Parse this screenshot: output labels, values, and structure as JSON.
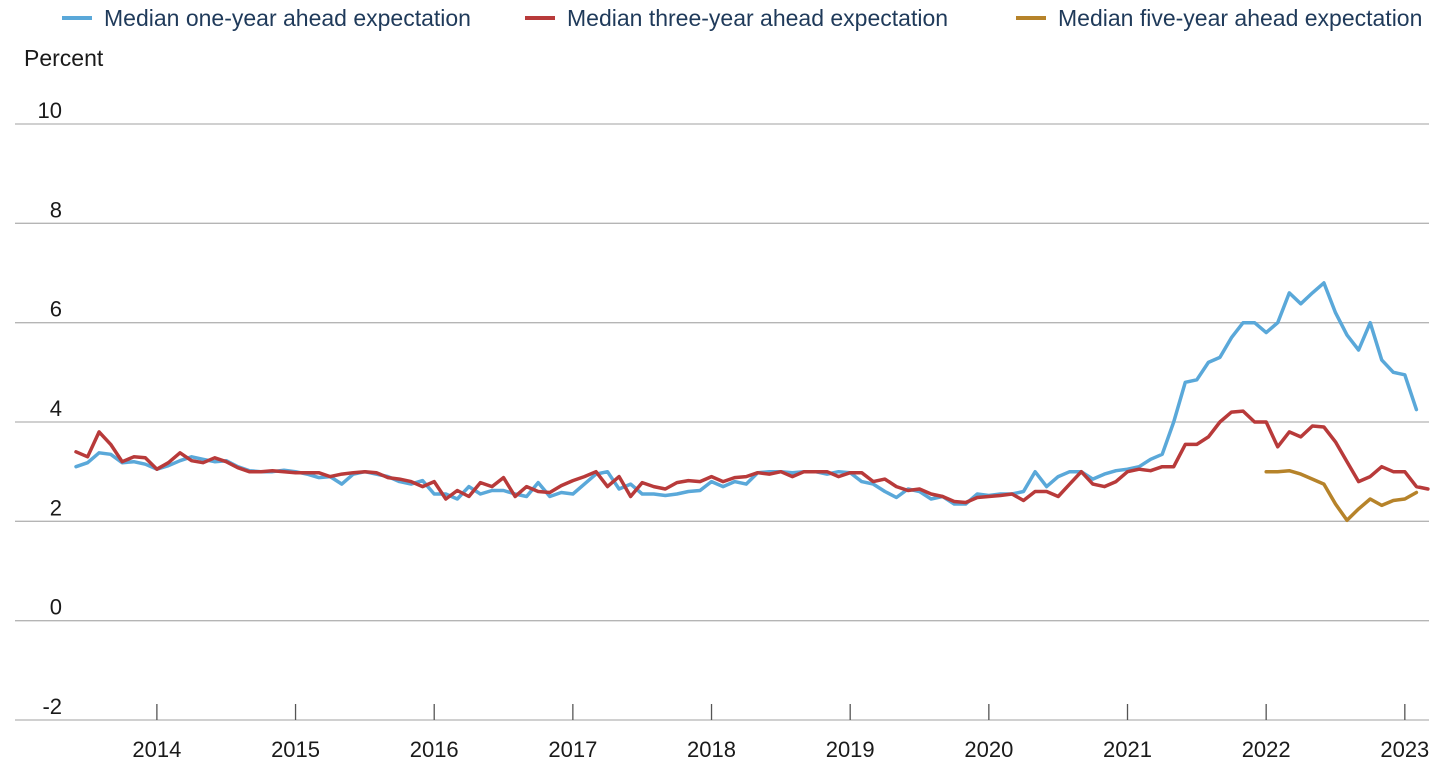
{
  "chart_data": {
    "type": "line",
    "title": "",
    "xlabel": "",
    "ylabel": "Percent",
    "ylim": [
      -2,
      10
    ],
    "yticks": [
      -2,
      0,
      2,
      4,
      6,
      8,
      10
    ],
    "xticks": [
      "2014",
      "2015",
      "2016",
      "2017",
      "2018",
      "2019",
      "2020",
      "2021",
      "2022",
      "2023"
    ],
    "grid": "horizontal",
    "legend": "top",
    "start": "2013-06",
    "series": [
      {
        "name": "Median one-year ahead expectation",
        "color": "#5aa8d9",
        "values": [
          3.1,
          3.18,
          3.38,
          3.35,
          3.18,
          3.2,
          3.15,
          3.05,
          3.12,
          3.22,
          3.3,
          3.25,
          3.2,
          3.22,
          3.1,
          3.02,
          3.0,
          3.0,
          3.03,
          3.0,
          2.95,
          2.88,
          2.9,
          2.75,
          2.95,
          3.0,
          2.95,
          2.9,
          2.8,
          2.75,
          2.82,
          2.55,
          2.55,
          2.45,
          2.7,
          2.55,
          2.62,
          2.62,
          2.55,
          2.5,
          2.78,
          2.5,
          2.58,
          2.55,
          2.75,
          2.95,
          3.0,
          2.65,
          2.75,
          2.55,
          2.55,
          2.52,
          2.55,
          2.6,
          2.62,
          2.8,
          2.7,
          2.8,
          2.75,
          2.98,
          3.0,
          3.0,
          2.98,
          3.0,
          3.0,
          2.95,
          3.0,
          2.98,
          2.8,
          2.75,
          2.6,
          2.48,
          2.65,
          2.6,
          2.45,
          2.5,
          2.35,
          2.35,
          2.55,
          2.52,
          2.55,
          2.55,
          2.6,
          3.0,
          2.7,
          2.9,
          3.0,
          3.0,
          2.85,
          2.95,
          3.02,
          3.05,
          3.1,
          3.25,
          3.35,
          4.0,
          4.8,
          4.85,
          5.2,
          5.3,
          5.7,
          6.0,
          6.0,
          5.8,
          6.0,
          6.6,
          6.38,
          6.6,
          6.8,
          6.2,
          5.75,
          5.45,
          6.0,
          5.25,
          5.0,
          4.95,
          4.25
        ]
      },
      {
        "name": "Median three-year ahead expectation",
        "color": "#b83a3a",
        "values": [
          3.4,
          3.3,
          3.8,
          3.55,
          3.2,
          3.3,
          3.28,
          3.05,
          3.18,
          3.38,
          3.22,
          3.18,
          3.28,
          3.2,
          3.08,
          3.0,
          3.0,
          3.02,
          3.0,
          2.98,
          2.98,
          2.98,
          2.9,
          2.95,
          2.98,
          3.0,
          2.98,
          2.88,
          2.85,
          2.8,
          2.7,
          2.8,
          2.45,
          2.62,
          2.5,
          2.78,
          2.7,
          2.88,
          2.5,
          2.7,
          2.6,
          2.58,
          2.72,
          2.82,
          2.9,
          3.0,
          2.7,
          2.9,
          2.5,
          2.78,
          2.7,
          2.65,
          2.78,
          2.82,
          2.8,
          2.9,
          2.8,
          2.88,
          2.9,
          2.98,
          2.95,
          3.0,
          2.9,
          3.0,
          3.0,
          3.0,
          2.9,
          2.98,
          2.98,
          2.8,
          2.85,
          2.7,
          2.62,
          2.65,
          2.55,
          2.5,
          2.4,
          2.38,
          2.48,
          2.5,
          2.52,
          2.55,
          2.42,
          2.6,
          2.6,
          2.5,
          2.75,
          3.0,
          2.75,
          2.7,
          2.8,
          3.0,
          3.05,
          3.02,
          3.1,
          3.1,
          3.55,
          3.55,
          3.7,
          4.0,
          4.2,
          4.22,
          4.0,
          4.0,
          3.5,
          3.8,
          3.7,
          3.92,
          3.9,
          3.6,
          3.2,
          2.8,
          2.9,
          3.1,
          3.0,
          3.0,
          2.7,
          2.65
        ]
      },
      {
        "name": "Median five-year ahead expectation",
        "color": "#b6832a",
        "start": "2022-01",
        "values": [
          3.0,
          3.0,
          3.02,
          2.95,
          2.85,
          2.75,
          2.35,
          2.02,
          2.25,
          2.45,
          2.32,
          2.42,
          2.45,
          2.58
        ]
      }
    ]
  }
}
